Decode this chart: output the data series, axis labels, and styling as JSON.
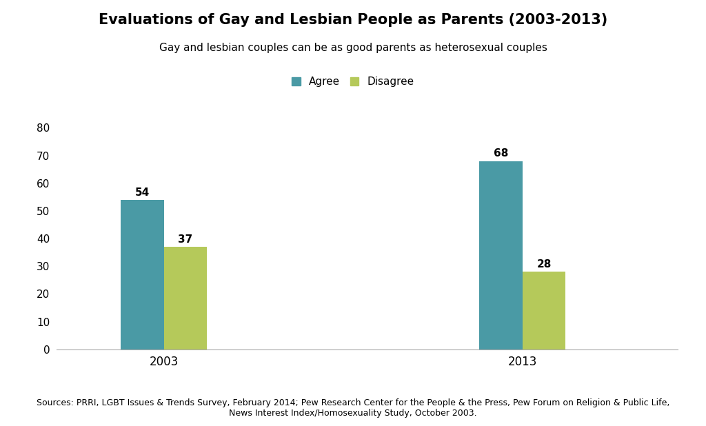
{
  "title": "Evaluations of Gay and Lesbian People as Parents (2003-2013)",
  "subtitle": "Gay and lesbian couples can be as good parents as heterosexual couples",
  "years": [
    "2003",
    "2013"
  ],
  "agree_values": [
    54,
    68
  ],
  "disagree_values": [
    37,
    28
  ],
  "agree_color": "#4a9aa5",
  "disagree_color": "#b5c95a",
  "legend_labels": [
    "Agree",
    "Disagree"
  ],
  "ylim": [
    0,
    80
  ],
  "yticks": [
    0,
    10,
    20,
    30,
    40,
    50,
    60,
    70,
    80
  ],
  "bar_width": 0.18,
  "group_centers": [
    1.0,
    2.5
  ],
  "xlim": [
    0.55,
    3.15
  ],
  "footnote_line1": "Sources: PRRI, LGBT Issues & Trends Survey, February 2014; Pew Research Center for the People & the Press, Pew Forum on Religion & Public Life,",
  "footnote_line2": "News Interest Index/Homosexuality Study, October 2003.",
  "background_color": "#ffffff",
  "title_fontsize": 15,
  "subtitle_fontsize": 11,
  "label_fontsize": 11,
  "tick_fontsize": 11,
  "legend_fontsize": 11,
  "footnote_fontsize": 9
}
